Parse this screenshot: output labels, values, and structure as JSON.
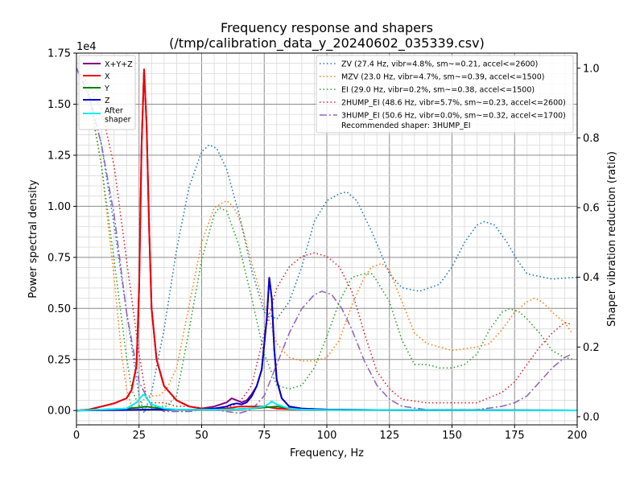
{
  "chart_data": {
    "type": "line",
    "title": "Frequency response and shapers",
    "subtitle": "(/tmp/calibration_data_y_20240602_035339.csv)",
    "xlabel": "Frequency, Hz",
    "ylabel": "Power spectral density",
    "y2label": "Shaper vibration reduction (ratio)",
    "y_offset_label": "1e4",
    "xlim": [
      0,
      200
    ],
    "ylim": [
      -0.07,
      1.75
    ],
    "y2lim": [
      -0.0233,
      1.0433
    ],
    "x_ticks": [
      0,
      25,
      50,
      75,
      100,
      125,
      150,
      175,
      200
    ],
    "y_ticks": [
      0.0,
      0.25,
      0.5,
      0.75,
      1.0,
      1.25,
      1.5,
      1.75
    ],
    "y_tick_labels": [
      "0.00",
      "0.25",
      "0.50",
      "0.75",
      "1.00",
      "1.25",
      "1.50",
      "1.75"
    ],
    "y2_ticks": [
      0.0,
      0.2,
      0.4,
      0.6,
      0.8,
      1.0
    ],
    "y2_tick_labels": [
      "0.0",
      "0.2",
      "0.4",
      "0.6",
      "0.8",
      "1.0"
    ],
    "grid": true,
    "legend_left_position": "top-left",
    "legend_right_position": "top-right",
    "psd_series": [
      {
        "name": "X+Y+Z",
        "color": "#800080",
        "style": "solid",
        "x": [
          0,
          5,
          10,
          15,
          18,
          20,
          22,
          24,
          25,
          26,
          27,
          28,
          29,
          30,
          32,
          35,
          40,
          45,
          50,
          55,
          60,
          62,
          64,
          66,
          68,
          70,
          72,
          74,
          76,
          77,
          78,
          79,
          80,
          82,
          85,
          90,
          100,
          120,
          150,
          200
        ],
        "y": [
          0,
          0.005,
          0.02,
          0.035,
          0.05,
          0.06,
          0.1,
          0.22,
          0.6,
          1.3,
          1.67,
          1.4,
          0.9,
          0.5,
          0.25,
          0.12,
          0.05,
          0.02,
          0.01,
          0.02,
          0.04,
          0.06,
          0.05,
          0.04,
          0.05,
          0.08,
          0.12,
          0.2,
          0.45,
          0.65,
          0.55,
          0.3,
          0.15,
          0.06,
          0.02,
          0.01,
          0.005,
          0.003,
          0.002,
          0.001
        ]
      },
      {
        "name": "X",
        "color": "#ee0000",
        "style": "solid",
        "x": [
          0,
          5,
          10,
          15,
          18,
          20,
          22,
          24,
          25,
          26,
          27,
          28,
          29,
          30,
          32,
          35,
          40,
          45,
          50,
          55,
          60,
          65,
          70,
          75,
          80,
          90,
          100,
          150,
          200
        ],
        "y": [
          0,
          0.005,
          0.02,
          0.035,
          0.05,
          0.06,
          0.1,
          0.22,
          0.6,
          1.3,
          1.67,
          1.4,
          0.9,
          0.5,
          0.25,
          0.12,
          0.05,
          0.02,
          0.01,
          0.01,
          0.01,
          0.02,
          0.02,
          0.02,
          0.01,
          0.005,
          0.003,
          0.002,
          0.001
        ]
      },
      {
        "name": "Y",
        "color": "#008000",
        "style": "solid",
        "x": [
          0,
          10,
          20,
          25,
          28,
          30,
          35,
          40,
          50,
          60,
          70,
          75,
          80,
          90,
          100,
          150,
          200
        ],
        "y": [
          0,
          0.005,
          0.01,
          0.015,
          0.02,
          0.015,
          0.01,
          0.005,
          0.004,
          0.005,
          0.01,
          0.015,
          0.02,
          0.005,
          0.003,
          0.002,
          0.001
        ]
      },
      {
        "name": "Z",
        "color": "#0000cc",
        "style": "solid",
        "x": [
          0,
          10,
          20,
          30,
          40,
          50,
          55,
          60,
          62,
          64,
          66,
          68,
          70,
          72,
          74,
          76,
          77,
          78,
          79,
          80,
          82,
          85,
          90,
          100,
          120,
          150,
          200
        ],
        "y": [
          0,
          0.002,
          0.003,
          0.005,
          0.005,
          0.005,
          0.01,
          0.02,
          0.03,
          0.035,
          0.03,
          0.04,
          0.07,
          0.12,
          0.2,
          0.45,
          0.65,
          0.55,
          0.3,
          0.15,
          0.06,
          0.02,
          0.01,
          0.005,
          0.003,
          0.002,
          0.001
        ]
      },
      {
        "name": "After shaper",
        "color": "#00eeee",
        "style": "solid",
        "x": [
          0,
          10,
          20,
          24,
          26,
          27,
          28,
          30,
          35,
          40,
          50,
          60,
          70,
          75,
          77,
          78,
          80,
          85,
          90,
          100,
          150,
          200
        ],
        "y": [
          0,
          0.005,
          0.01,
          0.04,
          0.07,
          0.08,
          0.06,
          0.03,
          0.01,
          0.005,
          0.004,
          0.005,
          0.01,
          0.02,
          0.035,
          0.045,
          0.03,
          0.01,
          0.005,
          0.003,
          0.002,
          0.001
        ]
      }
    ],
    "shaper_series": [
      {
        "name": "ZV (27.4 Hz, vibr=4.8%, sm~=0.21, accel<=2600)",
        "color": "#1f77b4",
        "style": "dotted",
        "x": [
          0,
          5,
          10,
          15,
          20,
          25,
          27,
          30,
          35,
          40,
          45,
          50,
          53,
          56,
          60,
          65,
          70,
          75,
          80,
          85,
          90,
          95,
          100,
          105,
          108,
          112,
          118,
          125,
          130,
          137,
          145,
          150,
          155,
          160,
          163,
          167,
          172,
          176,
          180,
          190,
          200
        ],
        "y": [
          1.0,
          0.93,
          0.78,
          0.55,
          0.3,
          0.06,
          0.01,
          0.07,
          0.25,
          0.48,
          0.66,
          0.76,
          0.78,
          0.77,
          0.71,
          0.58,
          0.42,
          0.3,
          0.28,
          0.33,
          0.43,
          0.56,
          0.62,
          0.64,
          0.645,
          0.62,
          0.53,
          0.41,
          0.37,
          0.36,
          0.38,
          0.43,
          0.5,
          0.55,
          0.56,
          0.55,
          0.5,
          0.45,
          0.41,
          0.395,
          0.4
        ]
      },
      {
        "name": "MZV (23.0 Hz, vibr=4.7%, sm~=0.39, accel<=1500)",
        "color": "#ff7f0e",
        "style": "dotted",
        "x": [
          0,
          5,
          10,
          15,
          18,
          20,
          22,
          24,
          26,
          28,
          30,
          33,
          36,
          40,
          45,
          50,
          55,
          60,
          63,
          66,
          70,
          75,
          80,
          85,
          90,
          95,
          100,
          105,
          110,
          115,
          118,
          122,
          125,
          130,
          135,
          140,
          150,
          160,
          165,
          170,
          175,
          180,
          183,
          186,
          190,
          195,
          198
        ],
        "y": [
          1.0,
          0.93,
          0.72,
          0.4,
          0.18,
          0.08,
          0.03,
          0.02,
          0.04,
          0.06,
          0.06,
          0.06,
          0.08,
          0.14,
          0.32,
          0.5,
          0.6,
          0.62,
          0.6,
          0.55,
          0.44,
          0.32,
          0.21,
          0.17,
          0.16,
          0.16,
          0.17,
          0.22,
          0.32,
          0.4,
          0.43,
          0.44,
          0.42,
          0.33,
          0.24,
          0.21,
          0.19,
          0.2,
          0.21,
          0.25,
          0.3,
          0.33,
          0.34,
          0.33,
          0.3,
          0.27,
          0.24
        ]
      },
      {
        "name": "EI (29.0 Hz, vibr=0.2%, sm~=0.38, accel<=1500)",
        "color": "#2ca02c",
        "style": "dotted",
        "x": [
          0,
          5,
          10,
          15,
          20,
          22,
          25,
          28,
          30,
          33,
          36,
          40,
          45,
          50,
          55,
          57,
          60,
          65,
          70,
          75,
          80,
          85,
          90,
          95,
          100,
          105,
          110,
          115,
          118,
          120,
          125,
          130,
          135,
          140,
          145,
          150,
          155,
          160,
          165,
          170,
          173,
          177,
          180,
          185,
          190,
          195,
          198
        ],
        "y": [
          1.0,
          0.92,
          0.72,
          0.45,
          0.17,
          0.08,
          0.03,
          0.02,
          0.025,
          0.03,
          0.03,
          0.06,
          0.25,
          0.45,
          0.58,
          0.6,
          0.59,
          0.49,
          0.34,
          0.18,
          0.09,
          0.08,
          0.09,
          0.14,
          0.23,
          0.33,
          0.4,
          0.41,
          0.41,
          0.39,
          0.33,
          0.22,
          0.15,
          0.15,
          0.14,
          0.14,
          0.15,
          0.18,
          0.25,
          0.3,
          0.31,
          0.3,
          0.28,
          0.24,
          0.19,
          0.17,
          0.165
        ]
      },
      {
        "name": "2HUMP_EI (48.6 Hz, vibr=5.7%, sm~=0.23, accel<=2600)",
        "color": "#d62728",
        "style": "dotted",
        "x": [
          0,
          5,
          10,
          15,
          20,
          25,
          28,
          30,
          35,
          40,
          45,
          50,
          55,
          60,
          65,
          70,
          75,
          80,
          85,
          90,
          95,
          100,
          105,
          110,
          115,
          120,
          125,
          130,
          140,
          150,
          160,
          170,
          175,
          180,
          185,
          190,
          195,
          198
        ],
        "y": [
          1.0,
          0.95,
          0.88,
          0.72,
          0.45,
          0.18,
          0.05,
          0.04,
          0.04,
          0.03,
          0.03,
          0.025,
          0.025,
          0.025,
          0.04,
          0.09,
          0.24,
          0.37,
          0.43,
          0.46,
          0.47,
          0.46,
          0.43,
          0.36,
          0.24,
          0.13,
          0.08,
          0.05,
          0.04,
          0.04,
          0.04,
          0.07,
          0.1,
          0.15,
          0.2,
          0.24,
          0.27,
          0.265
        ]
      },
      {
        "name": "3HUMP_EI (50.6 Hz, vibr=0.0%, sm~=0.32, accel<=1700)",
        "color": "#9467bd",
        "style": "dashdot",
        "x": [
          0,
          5,
          10,
          15,
          20,
          25,
          30,
          35,
          40,
          45,
          50,
          55,
          60,
          65,
          70,
          75,
          80,
          85,
          90,
          95,
          98,
          102,
          106,
          110,
          115,
          120,
          125,
          130,
          140,
          150,
          160,
          170,
          175,
          180,
          185,
          190,
          195,
          198
        ],
        "y": [
          1.0,
          0.92,
          0.78,
          0.58,
          0.3,
          0.1,
          0.03,
          0.015,
          0.015,
          0.015,
          0.02,
          0.02,
          0.015,
          0.01,
          0.02,
          0.06,
          0.15,
          0.24,
          0.31,
          0.35,
          0.36,
          0.35,
          0.31,
          0.25,
          0.16,
          0.09,
          0.05,
          0.03,
          0.02,
          0.02,
          0.02,
          0.03,
          0.04,
          0.06,
          0.1,
          0.14,
          0.17,
          0.18
        ]
      }
    ],
    "legend_left": [
      {
        "label": "X+Y+Z",
        "color": "#800080",
        "style": "solid"
      },
      {
        "label": "X",
        "color": "#ee0000",
        "style": "solid"
      },
      {
        "label": "Y",
        "color": "#008000",
        "style": "solid"
      },
      {
        "label": "Z",
        "color": "#0000cc",
        "style": "solid"
      },
      {
        "label": "After\nshaper",
        "color": "#00eeee",
        "style": "solid"
      }
    ],
    "legend_right": [
      {
        "label": "ZV (27.4 Hz, vibr=4.8%, sm~=0.21, accel<=2600)",
        "color": "#1f77b4",
        "style": "dotted"
      },
      {
        "label": "MZV (23.0 Hz, vibr=4.7%, sm~=0.39, accel<=1500)",
        "color": "#ff7f0e",
        "style": "dotted"
      },
      {
        "label": "EI (29.0 Hz, vibr=0.2%, sm~=0.38, accel<=1500)",
        "color": "#2ca02c",
        "style": "dotted"
      },
      {
        "label": "2HUMP_EI (48.6 Hz, vibr=5.7%, sm~=0.23, accel<=2600)",
        "color": "#d62728",
        "style": "dotted"
      },
      {
        "label": "3HUMP_EI (50.6 Hz, vibr=0.0%, sm~=0.32, accel<=1700)",
        "color": "#9467bd",
        "style": "dashdot"
      }
    ],
    "recommendation": "Recommended shaper: 3HUMP_EI"
  }
}
